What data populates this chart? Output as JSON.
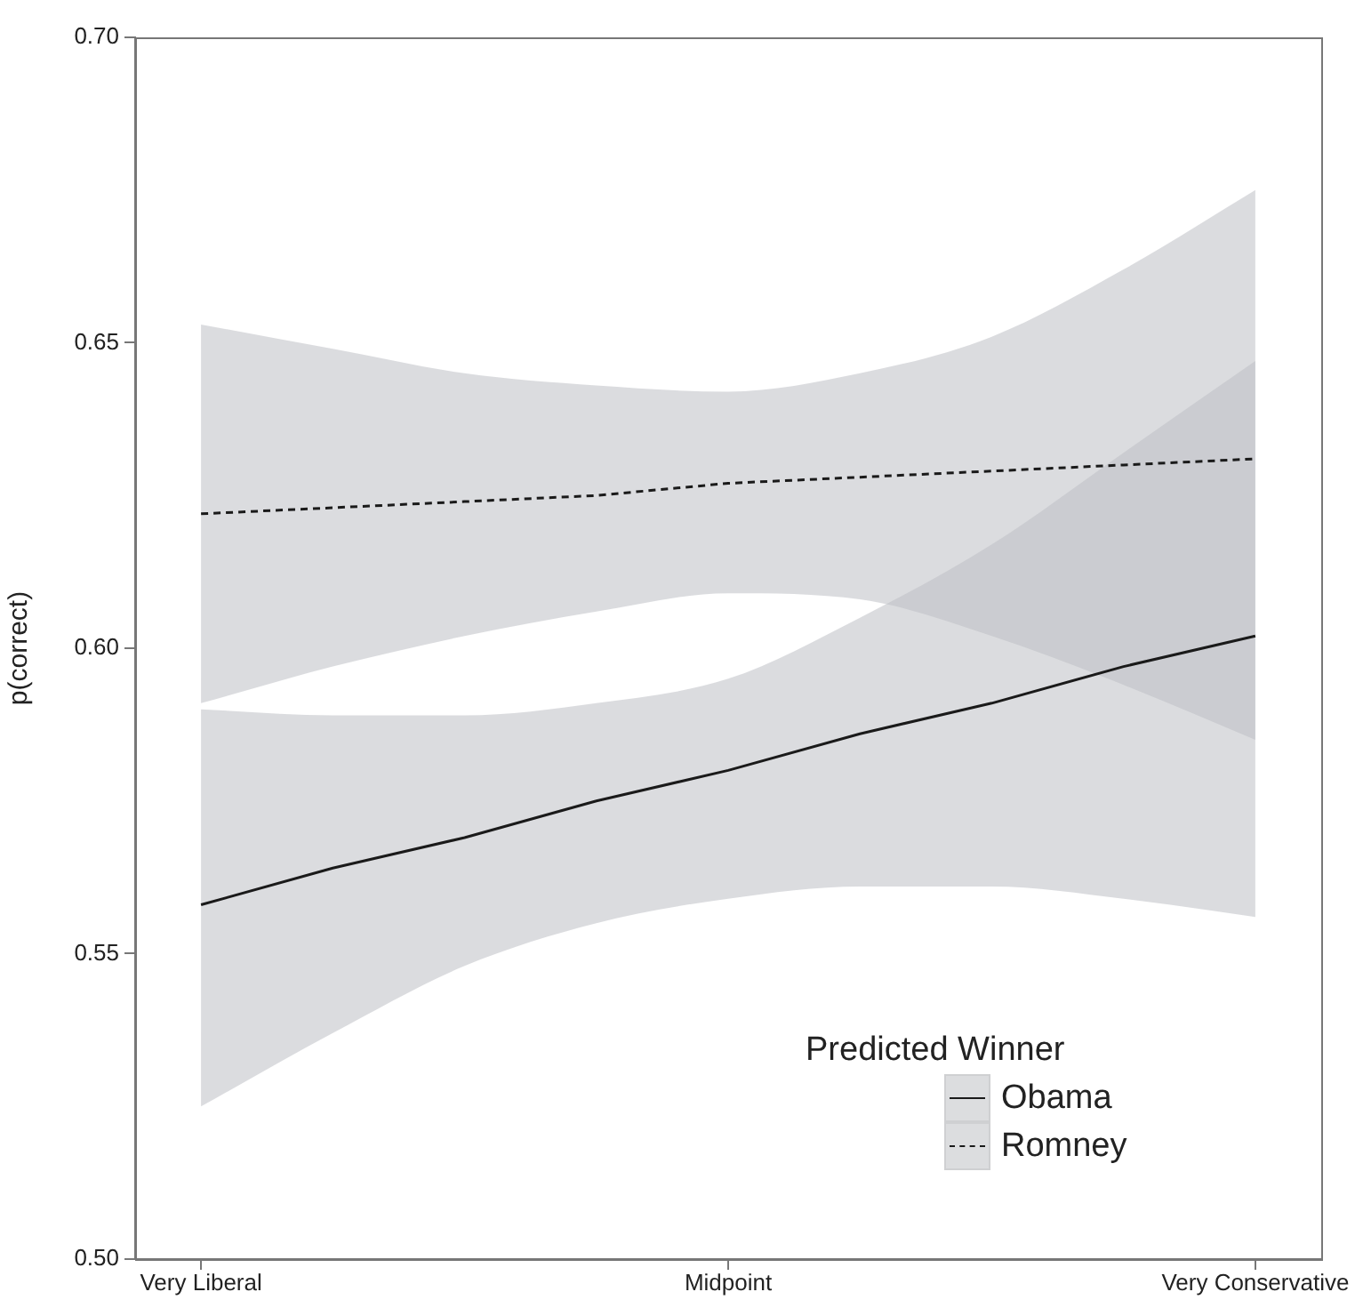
{
  "chart_data": {
    "type": "line",
    "ylabel": "p(correct)",
    "legend_title": "Predicted Winner",
    "legend": "bottom right",
    "grid": false,
    "marker": "none",
    "categories": [
      "Very Liberal",
      null,
      null,
      null,
      "Midpoint",
      null,
      null,
      null,
      "Very Conservative"
    ],
    "ylim": [
      0.5,
      0.7
    ],
    "yticks": [
      {
        "value": 0.5,
        "label": "0.50"
      },
      {
        "value": 0.55,
        "label": "0.55"
      },
      {
        "value": 0.6,
        "label": "0.60"
      },
      {
        "value": 0.65,
        "label": "0.65"
      },
      {
        "value": 0.7,
        "label": "0.70"
      }
    ],
    "series": [
      {
        "name": "Obama",
        "color": "#1a1a1a",
        "line_style": "solid",
        "values": [
          0.558,
          0.564,
          0.569,
          0.575,
          0.58,
          0.586,
          0.591,
          0.597,
          0.602
        ],
        "lower": [
          0.525,
          0.537,
          0.548,
          0.555,
          0.559,
          0.561,
          0.561,
          0.559,
          0.556
        ],
        "upper": [
          0.59,
          0.589,
          0.589,
          0.591,
          0.595,
          0.605,
          0.617,
          0.632,
          0.647
        ]
      },
      {
        "name": "Romney",
        "color": "#1a1a1a",
        "line_style": "dashed",
        "values": [
          0.622,
          0.623,
          0.624,
          0.625,
          0.627,
          0.628,
          0.629,
          0.63,
          0.631
        ],
        "lower": [
          0.591,
          0.597,
          0.602,
          0.606,
          0.609,
          0.608,
          0.602,
          0.594,
          0.585
        ],
        "upper": [
          0.653,
          0.649,
          0.645,
          0.643,
          0.642,
          0.645,
          0.651,
          0.662,
          0.675
        ]
      }
    ]
  }
}
